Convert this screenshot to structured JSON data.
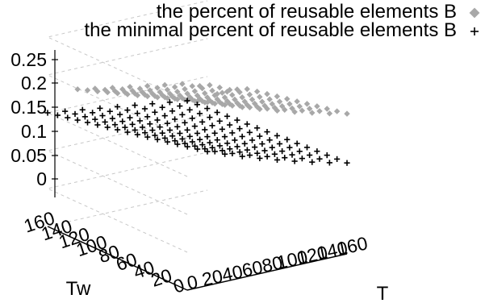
{
  "chart_data": {
    "type": "scatter",
    "title": "",
    "xlabel": "Tw",
    "ylabel": "T",
    "zlabel": "",
    "axes": {
      "x": {
        "label": "Tw",
        "ticks": [
          160,
          140,
          120,
          100,
          80,
          60,
          40,
          20,
          0
        ],
        "tick_labels": [
          "160",
          "140",
          "120",
          "100",
          "80",
          "60",
          "40",
          "20",
          "0"
        ],
        "range": [
          0,
          160
        ]
      },
      "y": {
        "label": "T",
        "ticks": [
          0,
          20,
          40,
          60,
          80,
          100,
          120,
          140,
          160
        ],
        "tick_labels": [
          "0",
          "20",
          "40",
          "60",
          "80",
          "100",
          "120",
          "140",
          "160"
        ],
        "range": [
          0,
          160
        ]
      },
      "z": {
        "ticks": [
          0.25,
          0.2,
          0.15,
          0.1,
          0.05,
          0
        ],
        "tick_labels": [
          "0.25",
          "0.2",
          "0.15",
          "0.1",
          "0.05",
          "0"
        ],
        "range": [
          0,
          0.25
        ]
      }
    },
    "legend": {
      "placement": "top-right",
      "entries": [
        {
          "name": "the percent of reusable elements B",
          "symbol": "diamond",
          "color": "#a8a8a8"
        },
        {
          "name": "the minimal percent of reusable elements B",
          "symbol": "plus",
          "color": "#000000"
        }
      ]
    },
    "grid": true,
    "series": [
      {
        "name": "the percent of reusable elements B",
        "marker": "diamond",
        "color": "#a8a8a8",
        "points": []
      },
      {
        "name": "the minimal percent of reusable elements B",
        "marker": "plus",
        "color": "#000000",
        "points": []
      }
    ]
  }
}
